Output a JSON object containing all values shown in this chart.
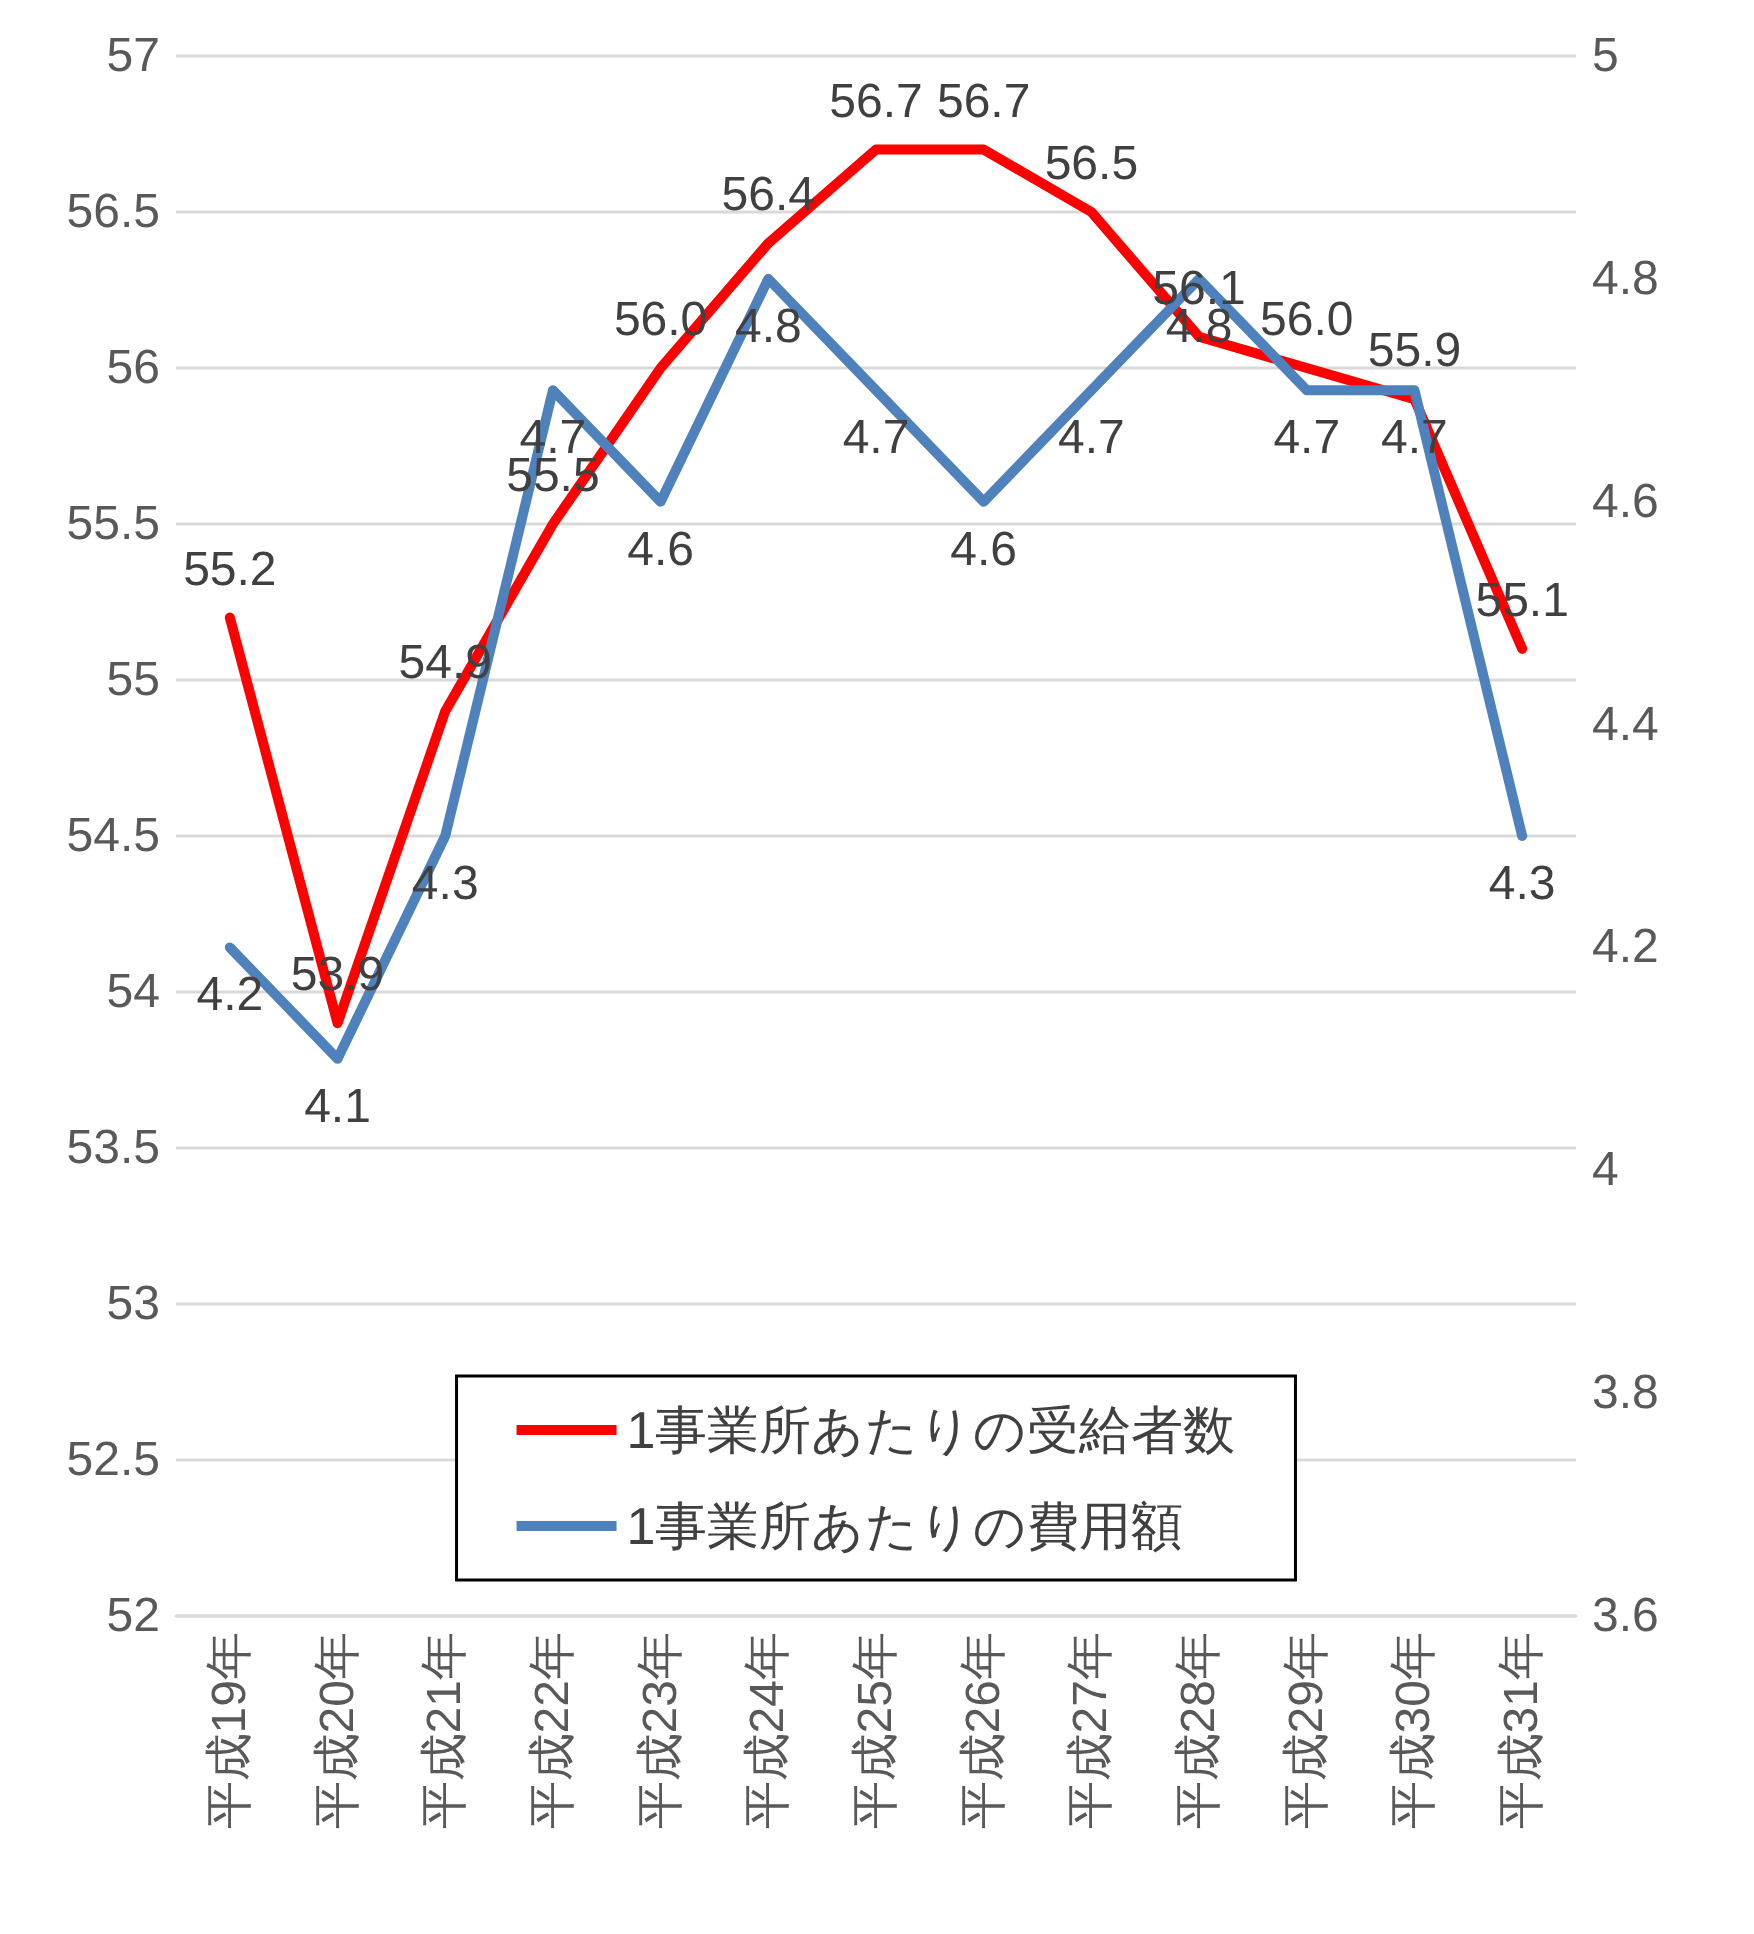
{
  "chart_data": {
    "type": "line",
    "categories": [
      "平成19年",
      "平成20年",
      "平成21年",
      "平成22年",
      "平成23年",
      "平成24年",
      "平成25年",
      "平成26年",
      "平成27年",
      "平成28年",
      "平成29年",
      "平成30年",
      "平成31年"
    ],
    "series": [
      {
        "name": "1事業所あたりの受給者数",
        "color": "#ff0000",
        "values": [
          55.2,
          53.9,
          54.9,
          55.5,
          56.0,
          56.4,
          56.7,
          56.7,
          56.5,
          56.1,
          56.0,
          55.9,
          55.1
        ],
        "value_labels": [
          "55.2",
          "53.9",
          "54.9",
          "55.5",
          "56.0",
          "56.4",
          "56.7",
          "56.7",
          "56.5",
          "56.1",
          "56.0",
          "55.9",
          "55.1"
        ]
      },
      {
        "name": "1事業所あたりの費用額",
        "color": "#4f81bd",
        "axis": "y2",
        "values": [
          4.2,
          4.1,
          4.3,
          4.7,
          4.6,
          4.8,
          4.7,
          4.6,
          4.7,
          4.8,
          4.7,
          4.7,
          4.3
        ],
        "value_labels": [
          "4.2",
          "4.1",
          "4.3",
          "4.7",
          "4.6",
          "4.8",
          "4.7",
          "4.6",
          "4.7",
          "4.8",
          "4.7",
          "4.7",
          "4.3"
        ]
      }
    ],
    "ylim": [
      52,
      57
    ],
    "yticks": [
      52,
      52.5,
      53,
      53.5,
      54,
      54.5,
      55,
      55.5,
      56,
      56.5,
      57
    ],
    "y2lim": [
      3.6,
      5
    ],
    "y2ticks": [
      3.6,
      3.8,
      4,
      4.2,
      4.4,
      4.6,
      4.8,
      5
    ],
    "grid": "y",
    "legend": "bottom",
    "marker": "none",
    "line_style": "solid"
  }
}
